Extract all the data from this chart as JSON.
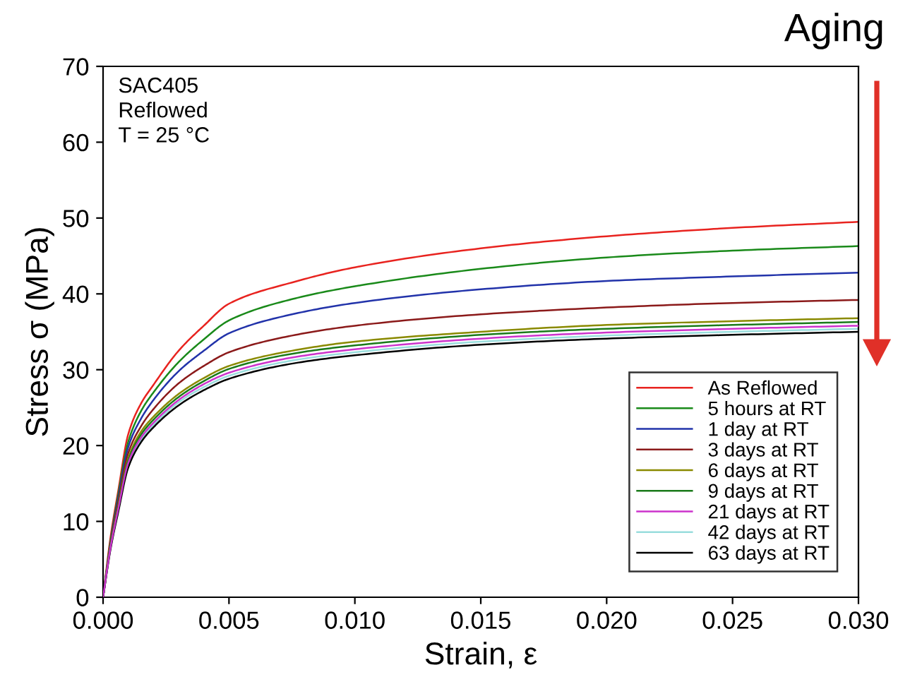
{
  "chart_data": {
    "type": "line",
    "xlabel": "Strain, ε",
    "ylabel": "Stress σ (MPa)",
    "annotations": [
      "SAC405\nReflowed\nT = 25 °C",
      "Aging"
    ],
    "x": [
      0,
      0.0003,
      0.0006,
      0.001,
      0.0015,
      0.002,
      0.003,
      0.004,
      0.005,
      0.0075,
      0.01,
      0.015,
      0.02,
      0.025,
      0.03
    ],
    "series": [
      {
        "name": "As Reflowed",
        "color": "#e8231f",
        "values": [
          0,
          8,
          14,
          21.5,
          25.5,
          28,
          32.5,
          35.8,
          38.7,
          41.5,
          43.5,
          46,
          47.6,
          48.7,
          49.5
        ]
      },
      {
        "name": "5 hours at RT",
        "color": "#1a8a1a",
        "values": [
          0,
          7.5,
          13.5,
          20.5,
          24.5,
          27,
          31,
          34,
          36.5,
          39.3,
          41,
          43.3,
          44.8,
          45.7,
          46.3
        ]
      },
      {
        "name": "1 day at RT",
        "color": "#2233aa",
        "values": [
          0,
          7.2,
          13,
          19.8,
          23.5,
          26,
          29.8,
          32.5,
          34.8,
          37.3,
          38.8,
          40.6,
          41.7,
          42.3,
          42.8
        ]
      },
      {
        "name": "3 days at RT",
        "color": "#8b1a1a",
        "values": [
          0,
          7,
          12.5,
          19,
          22.5,
          24.8,
          28.2,
          30.5,
          32.3,
          34.5,
          35.8,
          37.3,
          38.2,
          38.8,
          39.2
        ]
      },
      {
        "name": "6 days at RT",
        "color": "#8a8a00",
        "values": [
          0,
          6.8,
          12,
          18.3,
          21.8,
          23.8,
          26.8,
          28.9,
          30.5,
          32.5,
          33.7,
          35,
          35.9,
          36.4,
          36.8
        ]
      },
      {
        "name": "9 days at RT",
        "color": "#1a7a1a",
        "values": [
          0,
          6.7,
          11.8,
          18,
          21.4,
          23.4,
          26.4,
          28.5,
          30.1,
          32.1,
          33.2,
          34.6,
          35.4,
          35.9,
          36.3
        ]
      },
      {
        "name": "21 days at RT",
        "color": "#cc33cc",
        "values": [
          0,
          6.6,
          11.6,
          17.7,
          21,
          23,
          26,
          28.1,
          29.6,
          31.6,
          32.7,
          34.1,
          34.9,
          35.4,
          35.8
        ]
      },
      {
        "name": "42 days at RT",
        "color": "#99dddd",
        "values": [
          0,
          6.5,
          11.4,
          17.4,
          20.7,
          22.7,
          25.7,
          27.7,
          29.2,
          31.2,
          32.3,
          33.7,
          34.5,
          35,
          35.4
        ]
      },
      {
        "name": "63 days at RT",
        "color": "#000000",
        "values": [
          0,
          6.4,
          11.2,
          17.1,
          20.4,
          22.4,
          25.3,
          27.3,
          28.8,
          30.8,
          31.9,
          33.3,
          34.1,
          34.6,
          35.0
        ]
      }
    ],
    "xlim": [
      0,
      0.03
    ],
    "ylim": [
      0,
      70
    ],
    "xticks": [
      {
        "value": 0,
        "label": "0.000"
      },
      {
        "value": 0.005,
        "label": "0.005"
      },
      {
        "value": 0.01,
        "label": "0.010"
      },
      {
        "value": 0.015,
        "label": "0.015"
      },
      {
        "value": 0.02,
        "label": "0.020"
      },
      {
        "value": 0.025,
        "label": "0.025"
      },
      {
        "value": 0.03,
        "label": "0.030"
      }
    ],
    "yticks": [
      0,
      10,
      20,
      30,
      40,
      50,
      60,
      70
    ],
    "grid": false,
    "legend": "bottom right",
    "marker": "none",
    "line_style": "solid"
  }
}
